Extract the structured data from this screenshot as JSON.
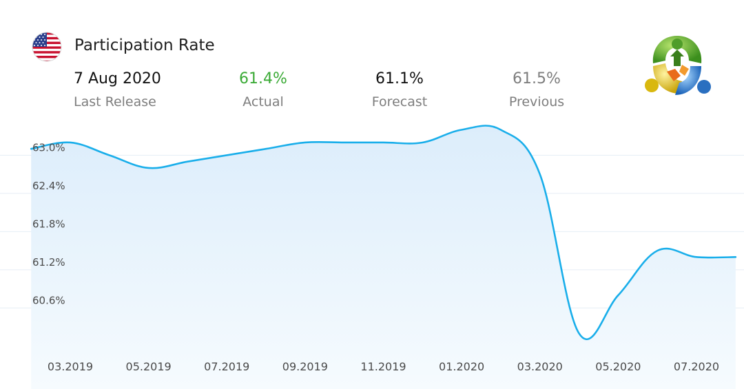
{
  "header": {
    "title": "Participation Rate",
    "flag_icon": "us-flag-icon",
    "logo_icon": "metatrader-logo-icon"
  },
  "stats": {
    "release": {
      "value": "7 Aug 2020",
      "label": "Last Release"
    },
    "actual": {
      "value": "61.4%",
      "label": "Actual"
    },
    "forecast": {
      "value": "61.1%",
      "label": "Forecast"
    },
    "previous": {
      "value": "61.5%",
      "label": "Previous"
    }
  },
  "colors": {
    "actual": "#3aaa35",
    "line": "#19aeea",
    "fill_top": "#dcedfb",
    "fill_bottom": "#f6fbfe",
    "grid": "#e6eef5"
  },
  "chart_data": {
    "type": "area",
    "title": "",
    "xlabel": "",
    "ylabel": "",
    "x": [
      "2019-02",
      "2019-03",
      "2019-04",
      "2019-05",
      "2019-06",
      "2019-07",
      "2019-08",
      "2019-09",
      "2019-10",
      "2019-11",
      "2019-12",
      "2020-01",
      "2020-02",
      "2020-03",
      "2020-04",
      "2020-05",
      "2020-06",
      "2020-07",
      "2020-08"
    ],
    "values": [
      63.1,
      63.2,
      63.0,
      62.8,
      62.9,
      63.0,
      63.1,
      63.2,
      63.2,
      63.2,
      63.2,
      63.4,
      63.4,
      62.7,
      60.2,
      60.8,
      61.5,
      61.4,
      61.4
    ],
    "y_ticks": [
      {
        "value": 63.0,
        "label": "63.0%"
      },
      {
        "value": 62.4,
        "label": "62.4%"
      },
      {
        "value": 61.8,
        "label": "61.8%"
      },
      {
        "value": 61.2,
        "label": "61.2%"
      },
      {
        "value": 60.6,
        "label": "60.6%"
      }
    ],
    "x_ticks": [
      "03.2019",
      "05.2019",
      "07.2019",
      "09.2019",
      "11.2019",
      "01.2020",
      "03.2020",
      "05.2020",
      "07.2020"
    ],
    "x_tick_dates": [
      "2019-03",
      "2019-05",
      "2019-07",
      "2019-09",
      "2019-11",
      "2020-01",
      "2020-03",
      "2020-05",
      "2020-07"
    ],
    "ylim": [
      59.9,
      63.6
    ],
    "grid": true,
    "legend": "none"
  }
}
